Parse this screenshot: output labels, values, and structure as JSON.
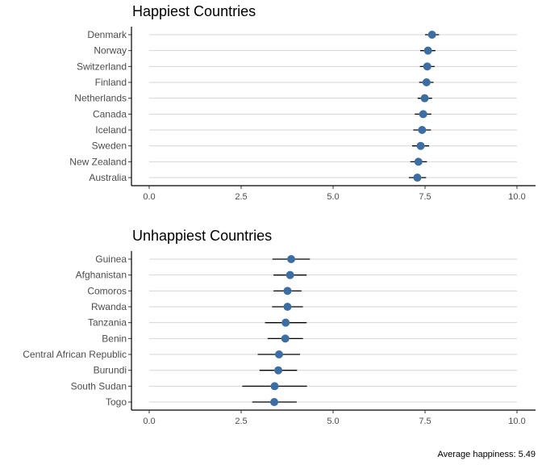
{
  "chart_data": [
    {
      "type": "dot-errorbar",
      "title": "Happiest Countries",
      "xlim": [
        0,
        10
      ],
      "xticks": [
        "0.0",
        "2.5",
        "5.0",
        "7.5",
        "10.0"
      ],
      "xtick_values": [
        0,
        2.5,
        5,
        7.5,
        10
      ],
      "grid": "horizontal",
      "point_color": "#3a6ea5",
      "categories": [
        "Denmark",
        "Norway",
        "Switzerland",
        "Finland",
        "Netherlands",
        "Canada",
        "Iceland",
        "Sweden",
        "New Zealand",
        "Australia"
      ],
      "values": [
        7.69,
        7.58,
        7.56,
        7.54,
        7.49,
        7.45,
        7.42,
        7.38,
        7.32,
        7.29
      ],
      "lower": [
        7.5,
        7.37,
        7.36,
        7.34,
        7.3,
        7.22,
        7.18,
        7.15,
        7.1,
        7.06
      ],
      "upper": [
        7.88,
        7.78,
        7.76,
        7.73,
        7.69,
        7.67,
        7.66,
        7.61,
        7.55,
        7.53
      ]
    },
    {
      "type": "dot-errorbar",
      "title": "Unhappiest Countries",
      "xlim": [
        0,
        10
      ],
      "xticks": [
        "0.0",
        "2.5",
        "5.0",
        "7.5",
        "10.0"
      ],
      "xtick_values": [
        0,
        2.5,
        5,
        7.5,
        10
      ],
      "grid": "horizontal",
      "point_color": "#3a6ea5",
      "categories": [
        "Guinea",
        "Afghanistan",
        "Comoros",
        "Rwanda",
        "Tanzania",
        "Benin",
        "Central African Republic",
        "Burundi",
        "South Sudan",
        "Togo"
      ],
      "values": [
        3.86,
        3.83,
        3.76,
        3.76,
        3.71,
        3.7,
        3.53,
        3.51,
        3.41,
        3.4
      ],
      "lower": [
        3.35,
        3.38,
        3.38,
        3.34,
        3.15,
        3.22,
        2.95,
        3.0,
        2.53,
        2.8
      ],
      "upper": [
        4.37,
        4.28,
        4.14,
        4.18,
        4.28,
        4.18,
        4.1,
        4.02,
        4.29,
        4.01
      ]
    }
  ],
  "caption": "Average happiness: 5.49"
}
